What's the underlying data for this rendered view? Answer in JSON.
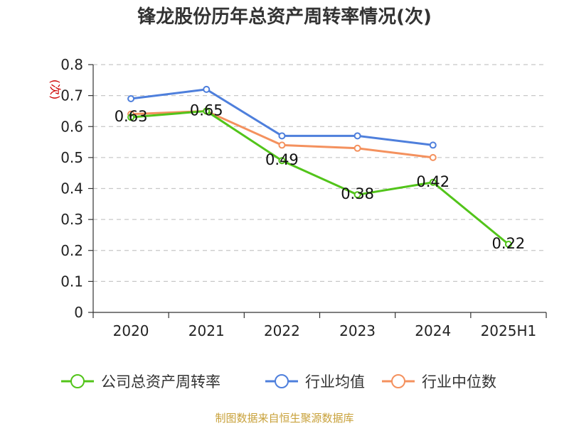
{
  "chart_data": {
    "type": "line",
    "title": "锋龙股份历年总资产周转率情况(次)",
    "ylabel": "(次)",
    "categories": [
      "2020",
      "2021",
      "2022",
      "2023",
      "2024",
      "2025H1"
    ],
    "ylim": [
      0,
      0.8
    ],
    "yticks": [
      0,
      0.1,
      0.2,
      0.3,
      0.4,
      0.5,
      0.6,
      0.7,
      0.8
    ],
    "grid": "horizontal-dashed",
    "legend_position": "bottom",
    "series": [
      {
        "name": "公司总资产周转率",
        "color": "#52c41a",
        "values": [
          0.63,
          0.65,
          0.49,
          0.38,
          0.42,
          0.22
        ],
        "labels": true
      },
      {
        "name": "行业均值",
        "color": "#4e7fdc",
        "values": [
          0.69,
          0.72,
          0.57,
          0.57,
          0.54,
          null
        ],
        "labels": false
      },
      {
        "name": "行业中位数",
        "color": "#f4915e",
        "values": [
          0.64,
          0.65,
          0.54,
          0.53,
          0.5,
          null
        ],
        "labels": false
      }
    ]
  },
  "source": "制图数据来自恒生聚源数据库"
}
